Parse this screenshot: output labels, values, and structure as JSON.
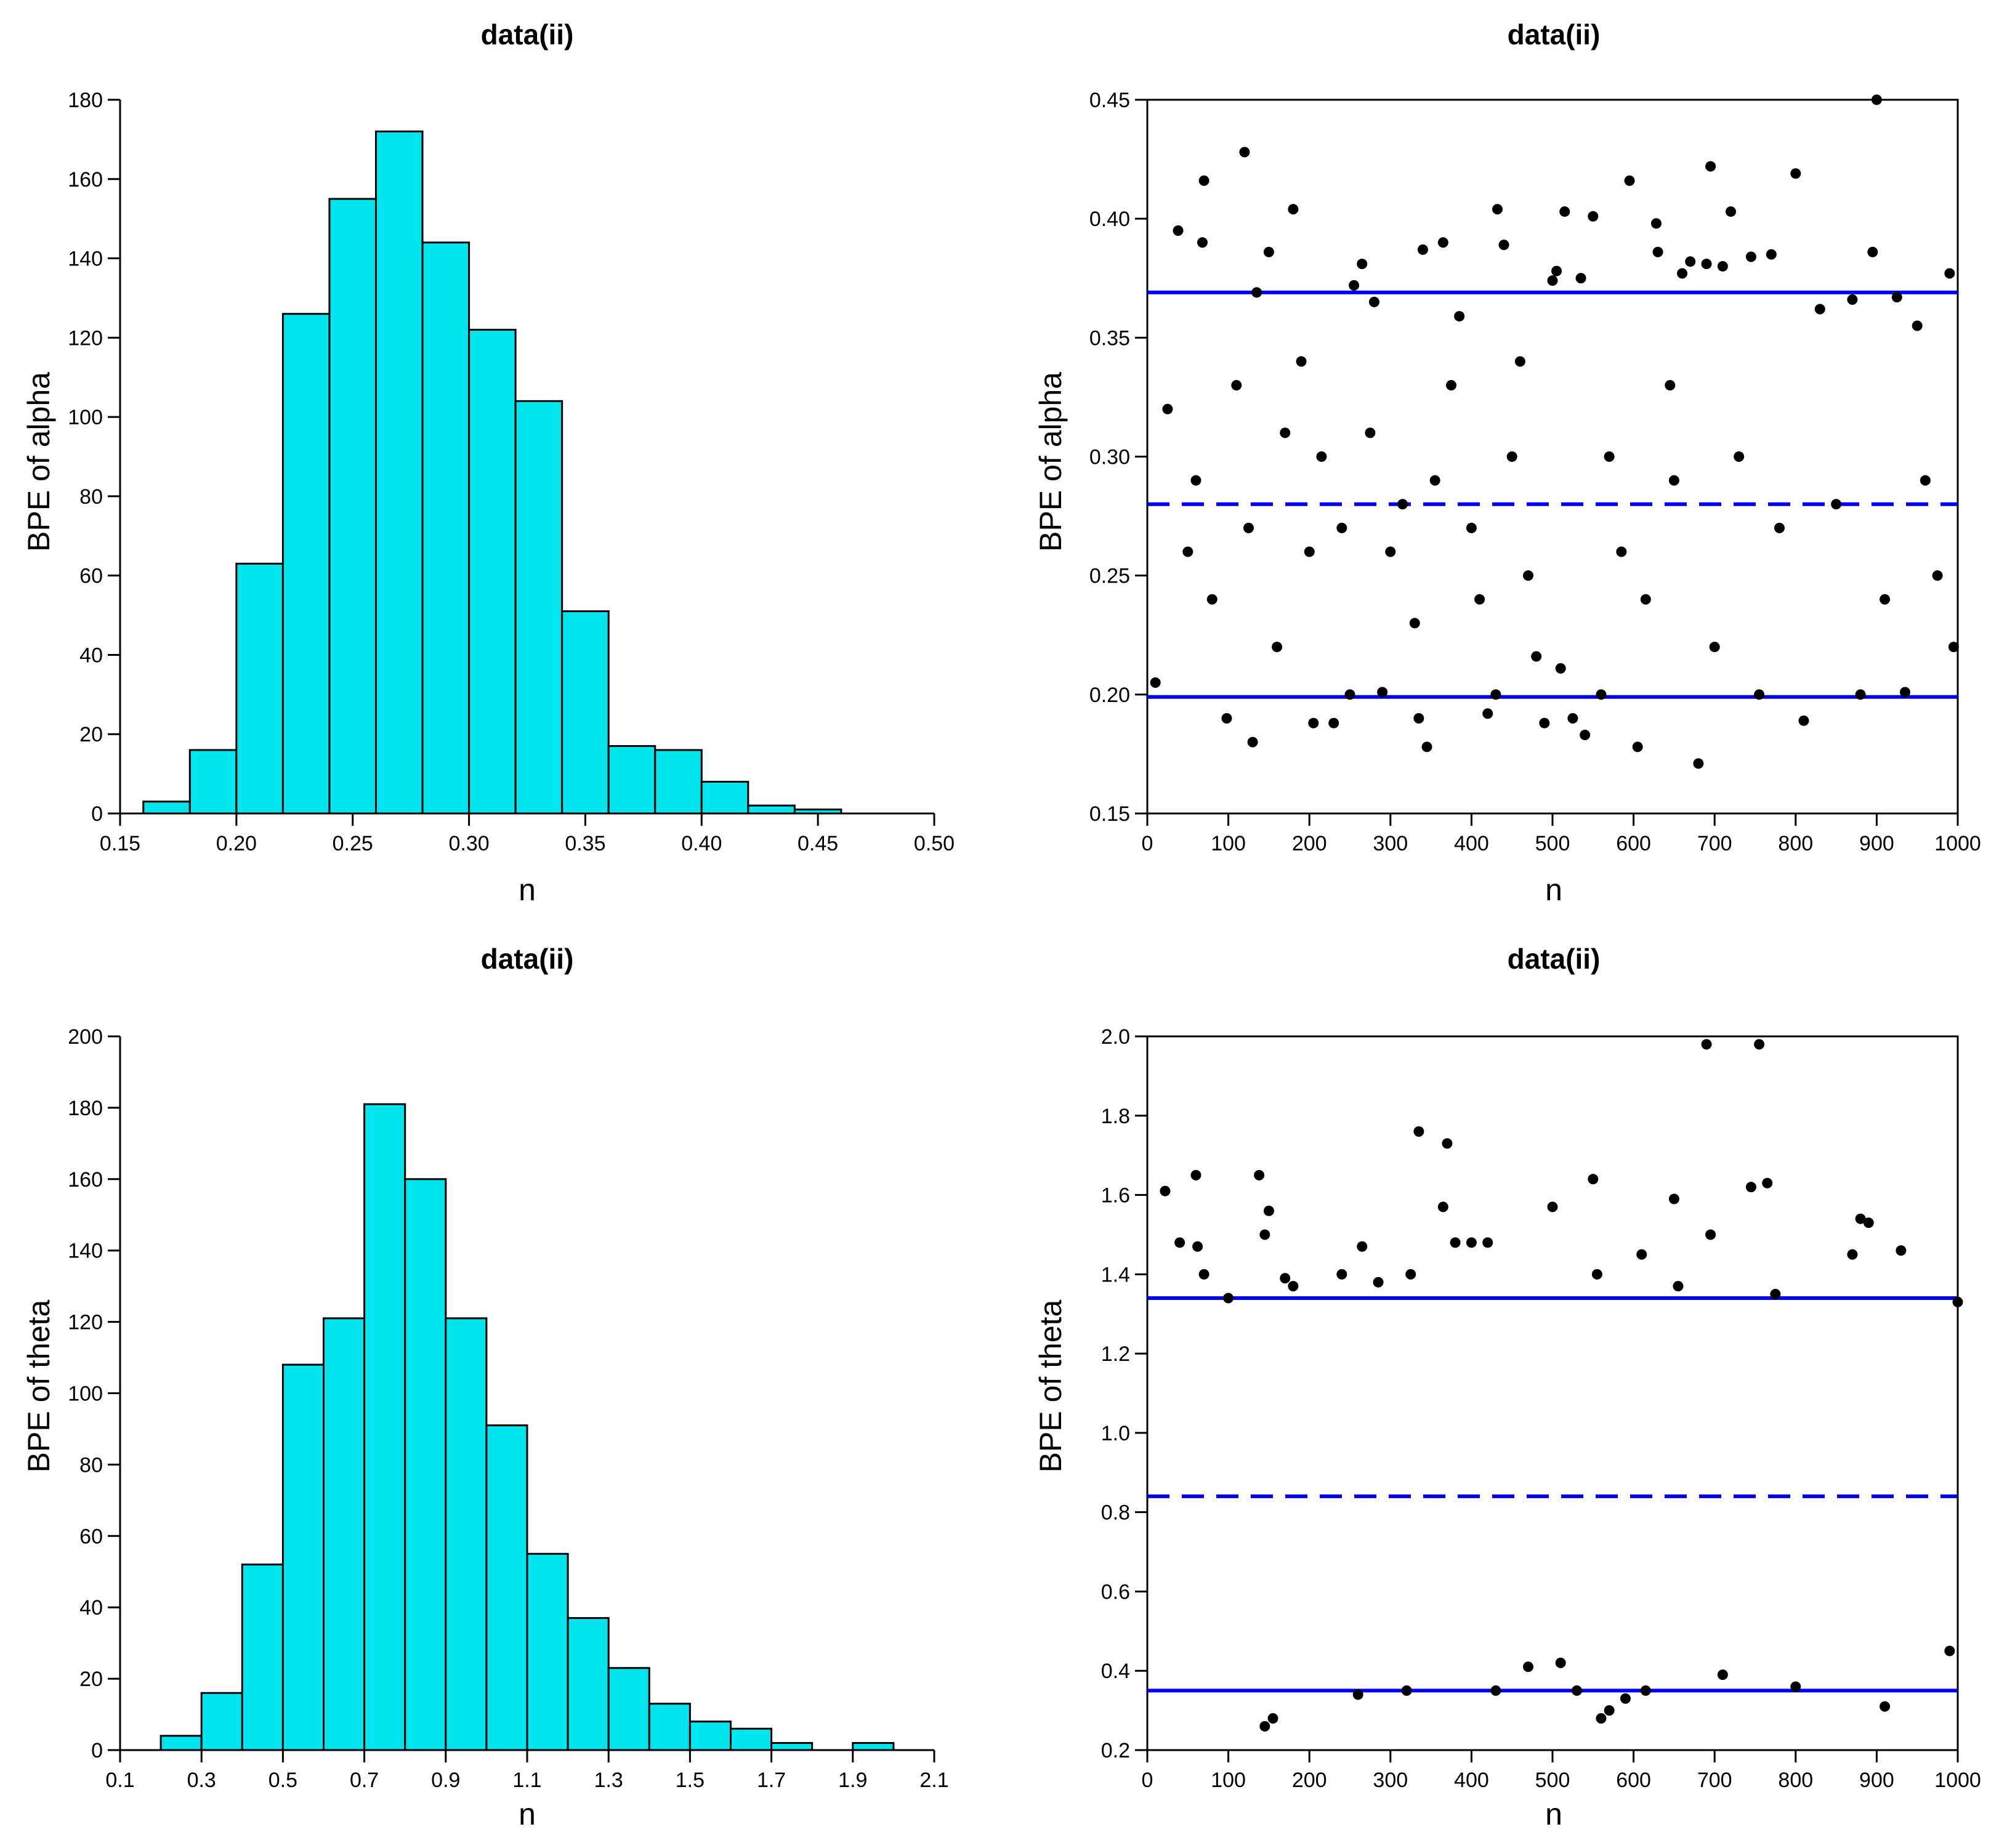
{
  "colors": {
    "bar_fill": "#00E5EE",
    "bar_stroke": "#000000",
    "line": "#0000EE",
    "point": "#000000"
  },
  "panels": [
    {
      "id": "p1",
      "title": "data(ii)",
      "xlabel": "n",
      "ylabel": "BPE of alpha",
      "chart_data": {
        "type": "bar",
        "title": "data(ii)",
        "xlabel": "n",
        "ylabel": "BPE of alpha",
        "xlim": [
          0.15,
          0.5
        ],
        "ylim": [
          0,
          180
        ],
        "xticks": [
          0.15,
          0.2,
          0.25,
          0.3,
          0.35,
          0.4,
          0.45,
          0.5
        ],
        "xtick_labels": [
          "0.15",
          "0.20",
          "0.25",
          "0.30",
          "0.35",
          "0.40",
          "0.45",
          "0.50"
        ],
        "yticks": [
          0,
          20,
          40,
          60,
          80,
          100,
          120,
          140,
          160,
          180
        ],
        "ytick_labels": [
          "0",
          "20",
          "40",
          "60",
          "80",
          "100",
          "120",
          "140",
          "160",
          "180"
        ],
        "bins": [
          0.16,
          0.18,
          0.2,
          0.22,
          0.24,
          0.26,
          0.28,
          0.3,
          0.32,
          0.34,
          0.36,
          0.38,
          0.4,
          0.42,
          0.44,
          0.46
        ],
        "counts": [
          3,
          16,
          63,
          126,
          155,
          172,
          144,
          122,
          104,
          51,
          17,
          16,
          8,
          2,
          1
        ],
        "grid": false
      }
    },
    {
      "id": "p2",
      "title": "data(ii)",
      "xlabel": "n",
      "ylabel": "BPE of alpha",
      "chart_data": {
        "type": "scatter",
        "title": "data(ii)",
        "xlabel": "n",
        "ylabel": "BPE of alpha",
        "xlim": [
          0,
          1000
        ],
        "ylim": [
          0.15,
          0.45
        ],
        "xticks": [
          0,
          100,
          200,
          300,
          400,
          500,
          600,
          700,
          800,
          900,
          1000
        ],
        "xtick_labels": [
          "0",
          "100",
          "200",
          "300",
          "400",
          "500",
          "600",
          "700",
          "800",
          "900",
          "1000"
        ],
        "yticks": [
          0.15,
          0.2,
          0.25,
          0.3,
          0.35,
          0.4,
          0.45
        ],
        "ytick_labels": [
          "0.15",
          "0.20",
          "0.25",
          "0.30",
          "0.35",
          "0.40",
          "0.45"
        ],
        "hlines": [
          {
            "y": 0.369,
            "style": "solid"
          },
          {
            "y": 0.28,
            "style": "dashed"
          },
          {
            "y": 0.199,
            "style": "solid"
          }
        ],
        "points": [
          [
            10,
            0.205
          ],
          [
            25,
            0.32
          ],
          [
            38,
            0.395
          ],
          [
            50,
            0.26
          ],
          [
            60,
            0.29
          ],
          [
            68,
            0.39
          ],
          [
            70,
            0.416
          ],
          [
            80,
            0.24
          ],
          [
            98,
            0.19
          ],
          [
            110,
            0.33
          ],
          [
            120,
            0.428
          ],
          [
            125,
            0.27
          ],
          [
            130,
            0.18
          ],
          [
            135,
            0.369
          ],
          [
            150,
            0.386
          ],
          [
            160,
            0.22
          ],
          [
            170,
            0.31
          ],
          [
            180,
            0.404
          ],
          [
            190,
            0.34
          ],
          [
            200,
            0.26
          ],
          [
            205,
            0.188
          ],
          [
            215,
            0.3
          ],
          [
            230,
            0.188
          ],
          [
            240,
            0.27
          ],
          [
            250,
            0.2
          ],
          [
            255,
            0.372
          ],
          [
            265,
            0.381
          ],
          [
            275,
            0.31
          ],
          [
            280,
            0.365
          ],
          [
            290,
            0.201
          ],
          [
            300,
            0.26
          ],
          [
            315,
            0.28
          ],
          [
            330,
            0.23
          ],
          [
            335,
            0.19
          ],
          [
            340,
            0.387
          ],
          [
            345,
            0.178
          ],
          [
            355,
            0.29
          ],
          [
            365,
            0.39
          ],
          [
            375,
            0.33
          ],
          [
            385,
            0.359
          ],
          [
            400,
            0.27
          ],
          [
            410,
            0.24
          ],
          [
            420,
            0.192
          ],
          [
            430,
            0.2
          ],
          [
            432,
            0.404
          ],
          [
            440,
            0.389
          ],
          [
            450,
            0.3
          ],
          [
            460,
            0.34
          ],
          [
            470,
            0.25
          ],
          [
            480,
            0.216
          ],
          [
            490,
            0.188
          ],
          [
            500,
            0.374
          ],
          [
            505,
            0.378
          ],
          [
            510,
            0.211
          ],
          [
            515,
            0.403
          ],
          [
            525,
            0.19
          ],
          [
            535,
            0.375
          ],
          [
            540,
            0.183
          ],
          [
            550,
            0.401
          ],
          [
            560,
            0.2
          ],
          [
            570,
            0.3
          ],
          [
            585,
            0.26
          ],
          [
            595,
            0.416
          ],
          [
            605,
            0.178
          ],
          [
            615,
            0.24
          ],
          [
            628,
            0.398
          ],
          [
            630,
            0.386
          ],
          [
            645,
            0.33
          ],
          [
            650,
            0.29
          ],
          [
            660,
            0.377
          ],
          [
            670,
            0.382
          ],
          [
            680,
            0.171
          ],
          [
            690,
            0.381
          ],
          [
            695,
            0.422
          ],
          [
            700,
            0.22
          ],
          [
            710,
            0.38
          ],
          [
            720,
            0.403
          ],
          [
            730,
            0.3
          ],
          [
            745,
            0.384
          ],
          [
            755,
            0.2
          ],
          [
            770,
            0.385
          ],
          [
            780,
            0.27
          ],
          [
            800,
            0.419
          ],
          [
            810,
            0.189
          ],
          [
            830,
            0.362
          ],
          [
            850,
            0.28
          ],
          [
            870,
            0.366
          ],
          [
            880,
            0.2
          ],
          [
            895,
            0.386
          ],
          [
            900,
            0.45
          ],
          [
            910,
            0.24
          ],
          [
            925,
            0.367
          ],
          [
            935,
            0.201
          ],
          [
            950,
            0.355
          ],
          [
            960,
            0.29
          ],
          [
            975,
            0.25
          ],
          [
            990,
            0.377
          ],
          [
            995,
            0.22
          ]
        ]
      }
    },
    {
      "id": "p3",
      "title": "data(ii)",
      "xlabel": "n",
      "ylabel": "BPE of theta",
      "chart_data": {
        "type": "bar",
        "title": "data(ii)",
        "xlabel": "n",
        "ylabel": "BPE of theta",
        "xlim": [
          0.1,
          2.1
        ],
        "ylim": [
          0,
          200
        ],
        "xticks": [
          0.1,
          0.3,
          0.5,
          0.7,
          0.9,
          1.1,
          1.3,
          1.5,
          1.7,
          1.9,
          2.1
        ],
        "xtick_labels": [
          "0.1",
          "0.3",
          "0.5",
          "0.7",
          "0.9",
          "1.1",
          "1.3",
          "1.5",
          "1.7",
          "1.9",
          "2.1"
        ],
        "yticks": [
          0,
          20,
          40,
          60,
          80,
          100,
          120,
          140,
          160,
          180,
          200
        ],
        "ytick_labels": [
          "0",
          "20",
          "40",
          "60",
          "80",
          "100",
          "120",
          "140",
          "160",
          "180",
          "200"
        ],
        "bins": [
          0.2,
          0.3,
          0.4,
          0.5,
          0.6,
          0.7,
          0.8,
          0.9,
          1.0,
          1.1,
          1.2,
          1.3,
          1.4,
          1.5,
          1.6,
          1.7,
          1.8,
          1.9,
          2.0
        ],
        "counts": [
          4,
          16,
          52,
          108,
          121,
          181,
          160,
          121,
          91,
          55,
          37,
          23,
          13,
          8,
          6,
          2,
          0,
          2
        ],
        "grid": false
      }
    },
    {
      "id": "p4",
      "title": "data(ii)",
      "xlabel": "n",
      "ylabel": "BPE of theta",
      "chart_data": {
        "type": "scatter",
        "title": "data(ii)",
        "xlabel": "n",
        "ylabel": "BPE of theta",
        "xlim": [
          0,
          1000
        ],
        "ylim": [
          0.2,
          2.0
        ],
        "xticks": [
          0,
          100,
          200,
          300,
          400,
          500,
          600,
          700,
          800,
          900,
          1000
        ],
        "xtick_labels": [
          "0",
          "100",
          "200",
          "300",
          "400",
          "500",
          "600",
          "700",
          "800",
          "900",
          "1000"
        ],
        "yticks": [
          0.2,
          0.4,
          0.6,
          0.8,
          1.0,
          1.2,
          1.4,
          1.6,
          1.8,
          2.0
        ],
        "ytick_labels": [
          "0.2",
          "0.4",
          "0.6",
          "0.8",
          "1.0",
          "1.2",
          "1.4",
          "1.6",
          "1.8",
          "2.0"
        ],
        "hlines": [
          {
            "y": 1.34,
            "style": "solid"
          },
          {
            "y": 0.84,
            "style": "dashed"
          },
          {
            "y": 0.35,
            "style": "solid"
          }
        ],
        "points": [
          [
            22,
            1.61
          ],
          [
            40,
            1.48
          ],
          [
            60,
            1.65
          ],
          [
            62,
            1.47
          ],
          [
            70,
            1.4
          ],
          [
            100,
            1.34
          ],
          [
            138,
            1.65
          ],
          [
            145,
            1.5
          ],
          [
            150,
            1.56
          ],
          [
            145,
            0.26
          ],
          [
            155,
            0.28
          ],
          [
            170,
            1.39
          ],
          [
            180,
            1.37
          ],
          [
            240,
            1.4
          ],
          [
            260,
            0.34
          ],
          [
            265,
            1.47
          ],
          [
            285,
            1.38
          ],
          [
            320,
            0.35
          ],
          [
            325,
            1.4
          ],
          [
            335,
            1.76
          ],
          [
            365,
            1.57
          ],
          [
            370,
            1.73
          ],
          [
            380,
            1.48
          ],
          [
            400,
            1.48
          ],
          [
            420,
            1.48
          ],
          [
            430,
            0.35
          ],
          [
            470,
            0.41
          ],
          [
            500,
            1.57
          ],
          [
            510,
            0.42
          ],
          [
            530,
            0.35
          ],
          [
            550,
            1.64
          ],
          [
            555,
            1.4
          ],
          [
            560,
            0.28
          ],
          [
            570,
            0.3
          ],
          [
            590,
            0.33
          ],
          [
            610,
            1.45
          ],
          [
            615,
            0.35
          ],
          [
            650,
            1.59
          ],
          [
            655,
            1.37
          ],
          [
            690,
            1.98
          ],
          [
            695,
            1.5
          ],
          [
            710,
            0.39
          ],
          [
            745,
            1.62
          ],
          [
            755,
            1.98
          ],
          [
            765,
            1.63
          ],
          [
            775,
            1.35
          ],
          [
            800,
            0.36
          ],
          [
            870,
            1.45
          ],
          [
            880,
            1.54
          ],
          [
            890,
            1.53
          ],
          [
            910,
            0.31
          ],
          [
            930,
            1.46
          ],
          [
            1000,
            1.33
          ],
          [
            990,
            0.45
          ]
        ]
      }
    }
  ]
}
